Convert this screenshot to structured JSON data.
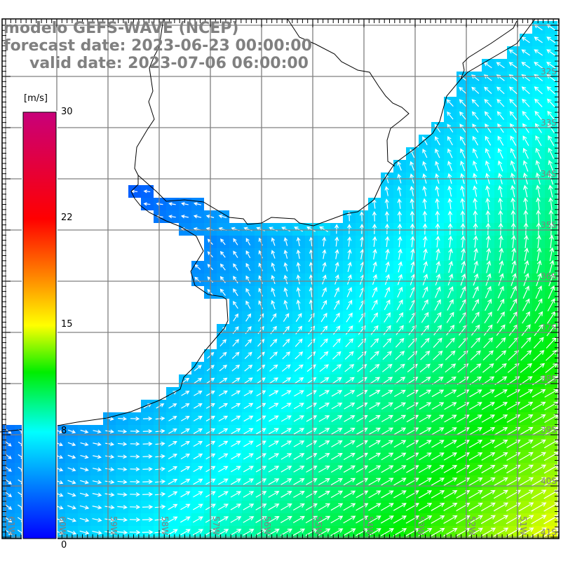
{
  "header": {
    "model": "modelo GEFS-WAVE (NCEP)",
    "forecast": "forecast date: 2023-06-23 00:00:00",
    "valid": "valid date: 2023-07-06 06:00:00"
  },
  "colorbar": {
    "unit": "[m/s]",
    "ticks": [
      "30",
      "22",
      "15",
      "8",
      "0"
    ],
    "tick_values": [
      30,
      22,
      15,
      8,
      0
    ],
    "colors": [
      "#0000ff",
      "#00ffff",
      "#00ff00",
      "#ffff00",
      "#ff8000",
      "#ff0000",
      "#c8007a"
    ]
  },
  "axes": {
    "lat_labels": [
      "32S",
      "33S",
      "34S",
      "35S",
      "36S",
      "37S",
      "38S",
      "39S",
      "40S",
      "41S"
    ],
    "lon_labels": [
      "61W",
      "60W",
      "59W",
      "58W",
      "57W",
      "56W",
      "55W",
      "54W",
      "53W",
      "52W",
      "51W"
    ]
  },
  "style": {
    "grid_color": "#808080",
    "label_color": "#808080",
    "arrow_color": "#ffffff",
    "coast_color": "#000000"
  }
}
